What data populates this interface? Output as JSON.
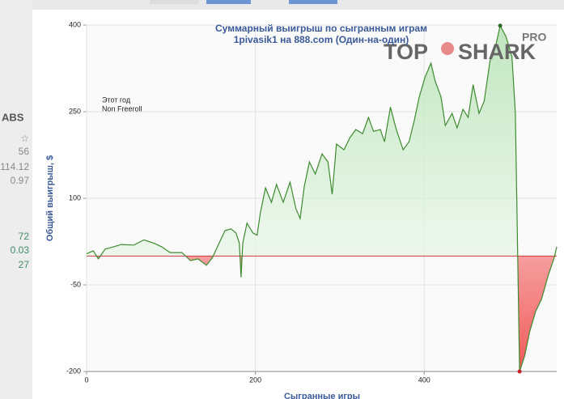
{
  "sidebar": {
    "fragments": [
      "ABS",
      "☆",
      "56",
      "114.12",
      "0.97",
      "72",
      "0.03",
      "27"
    ]
  },
  "watermark": {
    "left": "TOP",
    "right": "SHARK",
    "badge": "PRO"
  },
  "chart_data": {
    "type": "line",
    "title": "Суммарный выигрыш по сыгранным играм",
    "subtitle": "1pivasik1 на 888.com (Один-на-один)",
    "y_label": "Общий выигрыш, $",
    "x_label": "Сыгранные игры",
    "annotations": [
      "Этот год",
      "Non Freeroll"
    ],
    "xlim": [
      0,
      557
    ],
    "ylim": [
      -200,
      400
    ],
    "xticks": [
      0,
      200,
      400
    ],
    "yticks": [
      400,
      250,
      100,
      -50,
      -200
    ],
    "grid": true,
    "x": [
      0,
      8,
      14,
      22,
      32,
      41,
      56,
      68,
      80,
      89,
      99,
      113,
      123,
      132,
      142,
      149,
      156,
      164,
      171,
      177,
      181,
      183,
      185,
      190,
      197,
      202,
      206,
      212,
      219,
      225,
      233,
      241,
      248,
      253,
      258,
      264,
      271,
      279,
      286,
      291,
      296,
      305,
      312,
      319,
      327,
      334,
      340,
      348,
      353,
      360,
      367,
      375,
      382,
      388,
      394,
      401,
      408,
      413,
      420,
      425,
      433,
      439,
      446,
      452,
      458,
      465,
      471,
      478,
      485,
      490,
      497,
      504,
      508,
      513,
      519,
      525,
      532,
      539,
      547,
      554,
      557
    ],
    "series": [
      {
        "name": "1pivasik1",
        "color": "#3d8b2f",
        "values": [
          4,
          9,
          -5,
          12,
          16,
          20,
          19,
          28,
          22,
          16,
          6,
          6,
          -8,
          -5,
          -16,
          -3,
          19,
          44,
          47,
          40,
          22,
          -37,
          22,
          57,
          40,
          36,
          76,
          118,
          93,
          124,
          93,
          128,
          82,
          65,
          121,
          163,
          142,
          177,
          163,
          107,
          194,
          184,
          205,
          219,
          212,
          240,
          216,
          219,
          198,
          258,
          219,
          184,
          198,
          233,
          275,
          310,
          334,
          303,
          275,
          226,
          247,
          222,
          254,
          240,
          297,
          247,
          268,
          338,
          366,
          399,
          380,
          345,
          247,
          -200,
          -173,
          -131,
          -96,
          -75,
          -33,
          -3,
          16
        ]
      }
    ]
  }
}
